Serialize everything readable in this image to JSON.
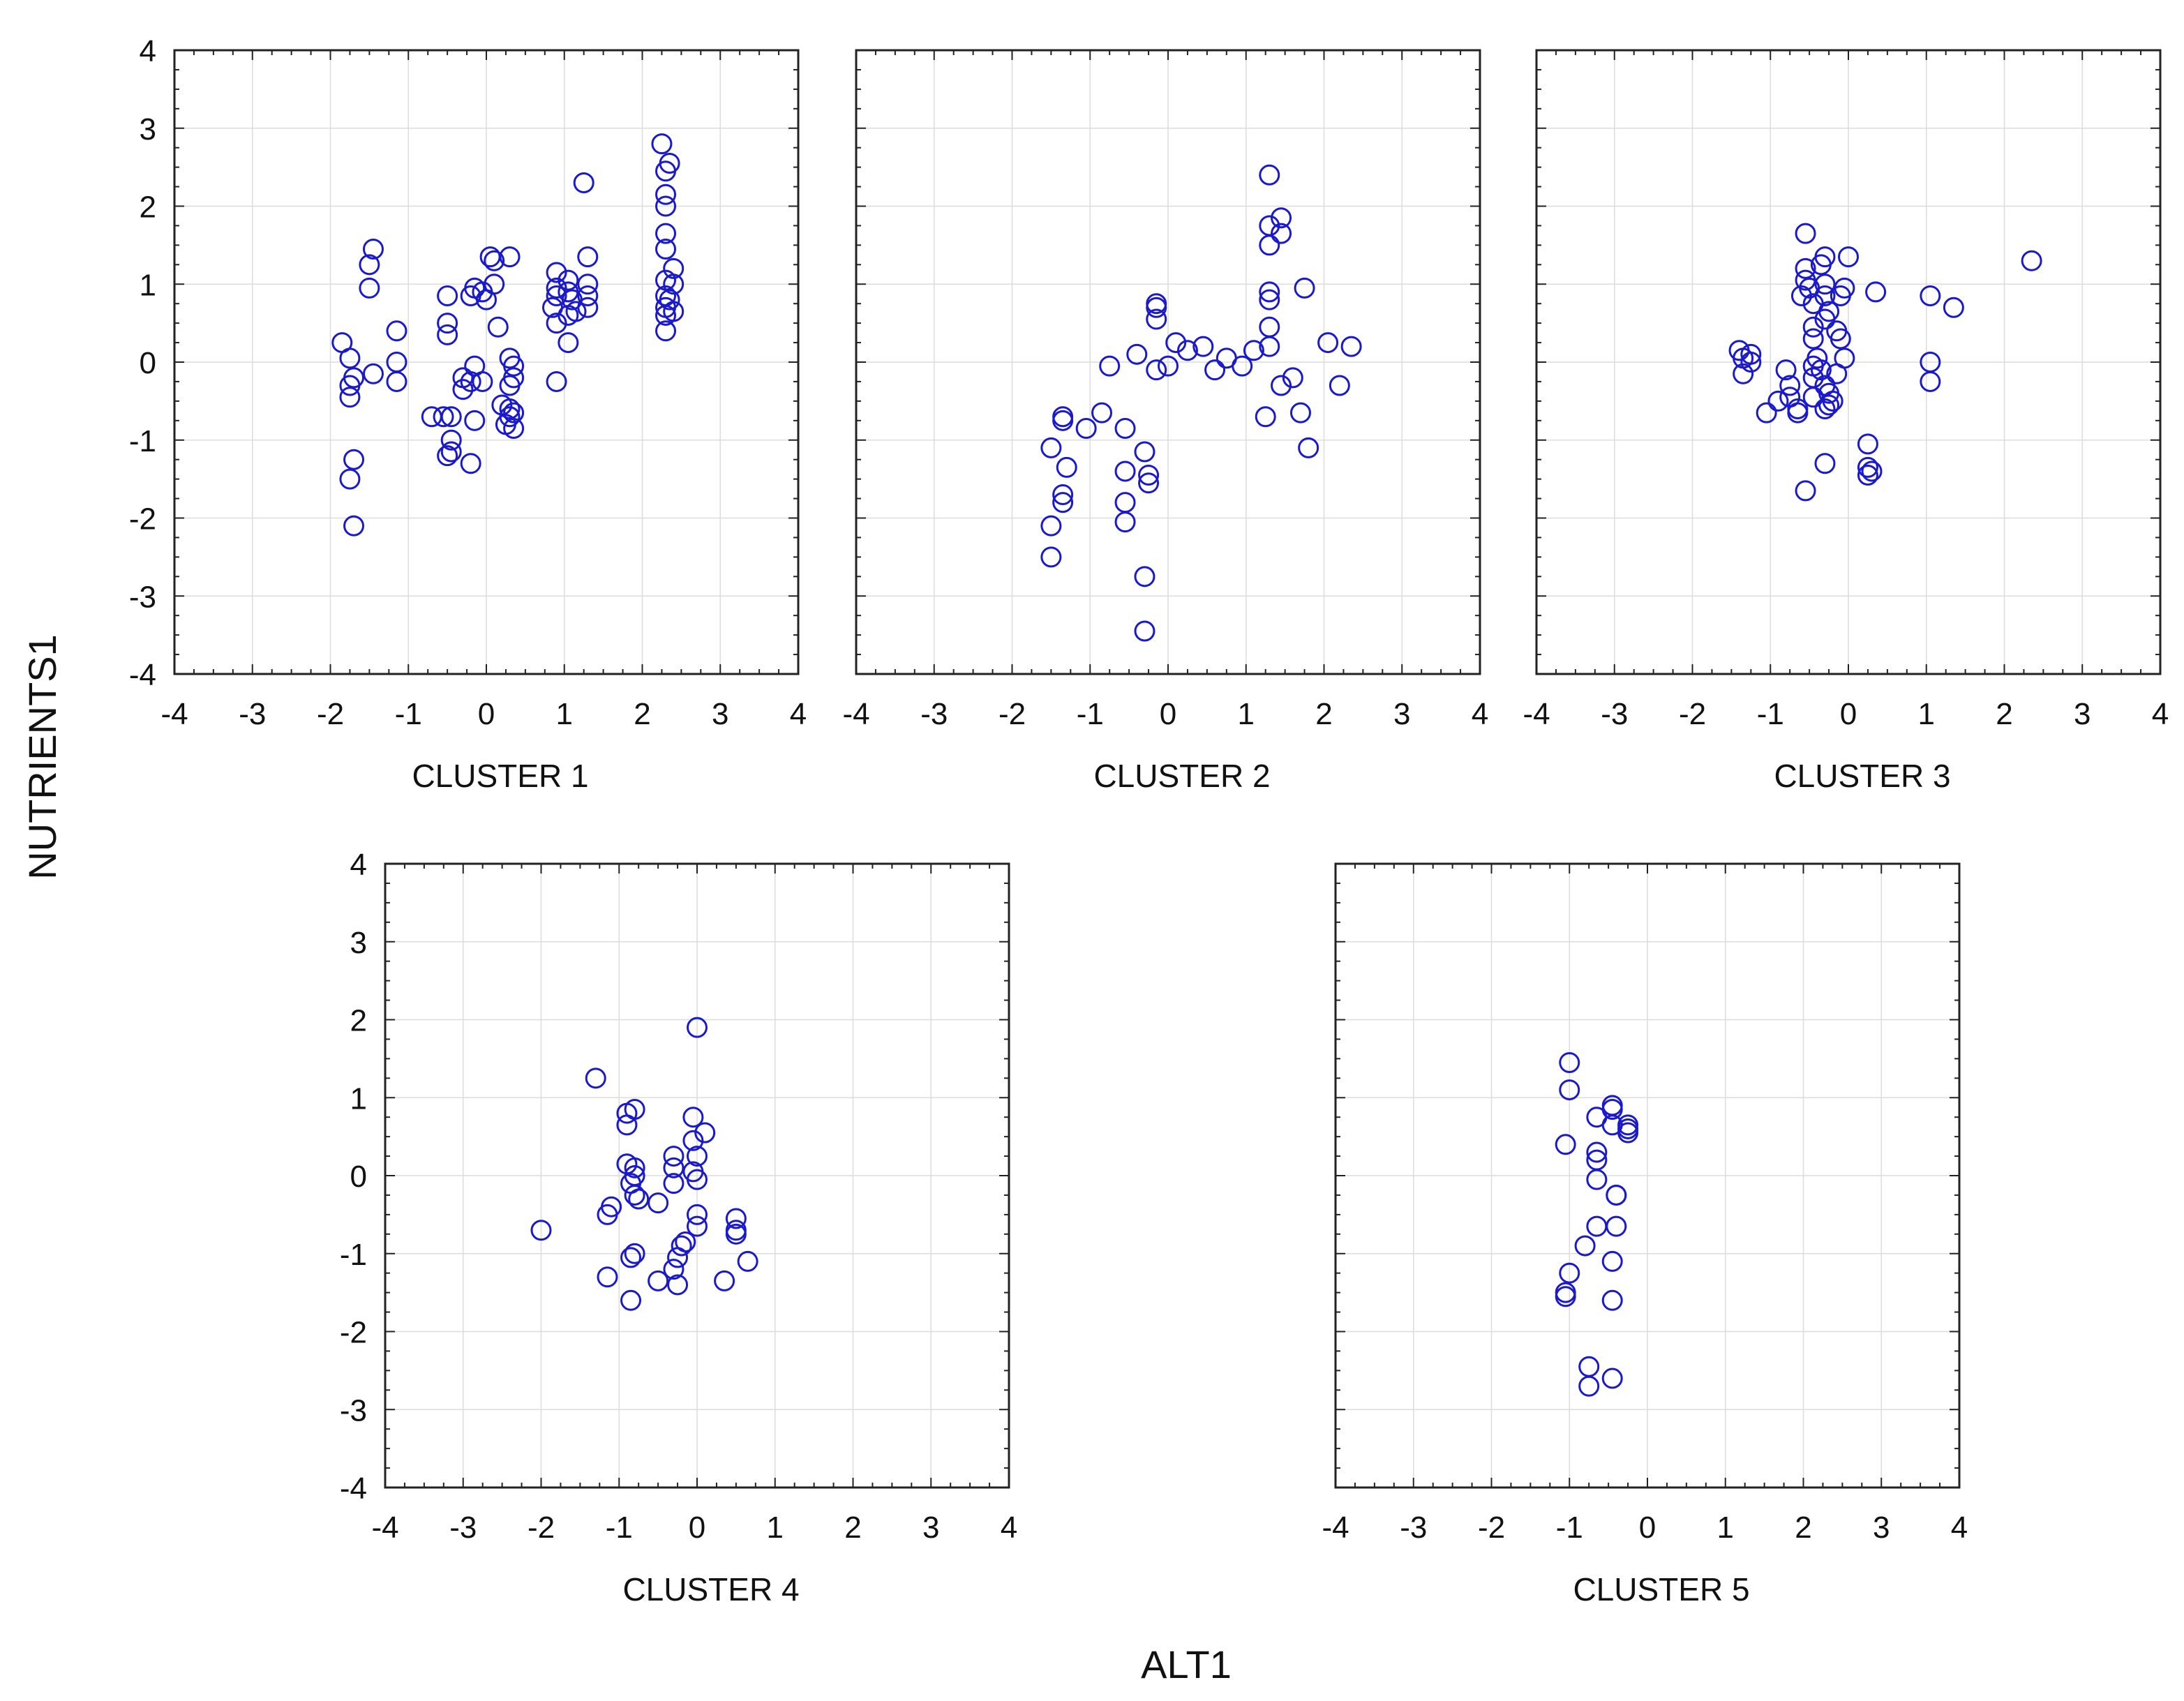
{
  "figure": {
    "ylabel": "NUTRIENTS1",
    "xlabel": "ALT1",
    "marker_color": "#1a1acc"
  },
  "chart_data": [
    {
      "type": "scatter",
      "title": "CLUSTER 1",
      "xlim": [
        -4,
        4
      ],
      "ylim": [
        -4,
        4
      ],
      "xticks": [
        "-4",
        "-3",
        "-2",
        "-1",
        "0",
        "1",
        "2",
        "3",
        "4"
      ],
      "yticks": [
        "4",
        "3",
        "2",
        "1",
        "0",
        "-1",
        "-2",
        "-3",
        "-4"
      ],
      "show_y_ticks": true,
      "grid": true,
      "points": [
        [
          -1.45,
          1.45
        ],
        [
          -1.5,
          1.25
        ],
        [
          -1.5,
          0.95
        ],
        [
          -1.85,
          0.25
        ],
        [
          -1.75,
          0.05
        ],
        [
          -1.7,
          -0.2
        ],
        [
          -1.75,
          -0.3
        ],
        [
          -1.75,
          -0.45
        ],
        [
          -1.45,
          -0.15
        ],
        [
          -1.15,
          0.4
        ],
        [
          -1.15,
          0.0
        ],
        [
          -1.15,
          -0.25
        ],
        [
          -1.7,
          -1.25
        ],
        [
          -1.75,
          -1.5
        ],
        [
          -1.7,
          -2.1
        ],
        [
          -0.5,
          0.85
        ],
        [
          -0.5,
          0.5
        ],
        [
          -0.5,
          0.35
        ],
        [
          -0.2,
          0.85
        ],
        [
          -0.15,
          0.95
        ],
        [
          0.0,
          0.8
        ],
        [
          -0.05,
          0.9
        ],
        [
          0.1,
          1.0
        ],
        [
          0.05,
          1.35
        ],
        [
          0.1,
          1.3
        ],
        [
          0.3,
          1.35
        ],
        [
          0.15,
          0.45
        ],
        [
          -0.15,
          -0.05
        ],
        [
          -0.3,
          -0.2
        ],
        [
          -0.3,
          -0.35
        ],
        [
          -0.2,
          -0.25
        ],
        [
          -0.05,
          -0.25
        ],
        [
          -0.15,
          -0.75
        ],
        [
          -0.55,
          -0.7
        ],
        [
          -0.45,
          -0.7
        ],
        [
          -0.7,
          -0.7
        ],
        [
          -0.45,
          -1.0
        ],
        [
          -0.45,
          -1.15
        ],
        [
          -0.5,
          -1.2
        ],
        [
          -0.2,
          -1.3
        ],
        [
          0.3,
          0.05
        ],
        [
          0.35,
          -0.05
        ],
        [
          0.35,
          -0.2
        ],
        [
          0.3,
          -0.3
        ],
        [
          0.2,
          -0.55
        ],
        [
          0.3,
          -0.6
        ],
        [
          0.35,
          -0.65
        ],
        [
          0.3,
          -0.7
        ],
        [
          0.25,
          -0.8
        ],
        [
          0.35,
          -0.85
        ],
        [
          0.9,
          1.15
        ],
        [
          0.9,
          0.95
        ],
        [
          0.9,
          0.85
        ],
        [
          0.85,
          0.7
        ],
        [
          0.9,
          0.5
        ],
        [
          1.05,
          1.05
        ],
        [
          1.05,
          0.9
        ],
        [
          1.1,
          0.8
        ],
        [
          1.15,
          0.65
        ],
        [
          1.05,
          0.6
        ],
        [
          1.3,
          1.35
        ],
        [
          1.3,
          1.0
        ],
        [
          1.3,
          0.85
        ],
        [
          1.3,
          0.7
        ],
        [
          1.25,
          2.3
        ],
        [
          1.05,
          0.25
        ],
        [
          0.9,
          -0.25
        ],
        [
          2.25,
          2.8
        ],
        [
          2.35,
          2.55
        ],
        [
          2.3,
          2.45
        ],
        [
          2.3,
          2.15
        ],
        [
          2.3,
          2.0
        ],
        [
          2.3,
          1.65
        ],
        [
          2.3,
          1.45
        ],
        [
          2.4,
          1.2
        ],
        [
          2.3,
          1.05
        ],
        [
          2.4,
          1.0
        ],
        [
          2.3,
          0.85
        ],
        [
          2.35,
          0.8
        ],
        [
          2.3,
          0.7
        ],
        [
          2.4,
          0.65
        ],
        [
          2.3,
          0.6
        ],
        [
          2.3,
          0.4
        ]
      ]
    },
    {
      "type": "scatter",
      "title": "CLUSTER 2",
      "xlim": [
        -4,
        4
      ],
      "ylim": [
        -4,
        4
      ],
      "xticks": [
        "-4",
        "-3",
        "-2",
        "-1",
        "0",
        "1",
        "2",
        "3",
        "4"
      ],
      "yticks": [],
      "show_y_ticks": false,
      "grid": true,
      "points": [
        [
          -1.5,
          -1.1
        ],
        [
          -1.35,
          -0.7
        ],
        [
          -1.35,
          -0.75
        ],
        [
          -1.3,
          -1.35
        ],
        [
          -1.35,
          -1.7
        ],
        [
          -1.35,
          -1.8
        ],
        [
          -1.5,
          -2.1
        ],
        [
          -1.5,
          -2.5
        ],
        [
          -1.05,
          -0.85
        ],
        [
          -0.85,
          -0.65
        ],
        [
          -0.75,
          -0.05
        ],
        [
          -0.55,
          -0.85
        ],
        [
          -0.55,
          -1.4
        ],
        [
          -0.55,
          -1.8
        ],
        [
          -0.55,
          -2.05
        ],
        [
          -0.3,
          -1.15
        ],
        [
          -0.25,
          -1.45
        ],
        [
          -0.25,
          -1.55
        ],
        [
          -0.3,
          -2.75
        ],
        [
          -0.3,
          -3.45
        ],
        [
          -0.15,
          0.75
        ],
        [
          -0.15,
          0.7
        ],
        [
          -0.15,
          0.55
        ],
        [
          -0.15,
          -0.1
        ],
        [
          -0.4,
          0.1
        ],
        [
          0.0,
          -0.05
        ],
        [
          0.1,
          0.25
        ],
        [
          0.25,
          0.15
        ],
        [
          0.45,
          0.2
        ],
        [
          0.6,
          -0.1
        ],
        [
          0.75,
          0.05
        ],
        [
          0.95,
          -0.05
        ],
        [
          1.1,
          0.15
        ],
        [
          1.25,
          -0.7
        ],
        [
          1.3,
          2.4
        ],
        [
          1.3,
          1.75
        ],
        [
          1.3,
          1.5
        ],
        [
          1.45,
          1.85
        ],
        [
          1.45,
          1.65
        ],
        [
          1.3,
          0.9
        ],
        [
          1.3,
          0.8
        ],
        [
          1.3,
          0.45
        ],
        [
          1.3,
          0.2
        ],
        [
          1.45,
          -0.3
        ],
        [
          1.6,
          -0.2
        ],
        [
          1.7,
          -0.65
        ],
        [
          1.75,
          0.95
        ],
        [
          1.8,
          -1.1
        ],
        [
          2.05,
          0.25
        ],
        [
          2.2,
          -0.3
        ],
        [
          2.35,
          0.2
        ]
      ]
    },
    {
      "type": "scatter",
      "title": "CLUSTER 3",
      "xlim": [
        -4,
        4
      ],
      "ylim": [
        -4,
        4
      ],
      "xticks": [
        "-4",
        "-3",
        "-2",
        "-1",
        "0",
        "1",
        "2",
        "3",
        "4"
      ],
      "yticks": [],
      "show_y_ticks": false,
      "grid": true,
      "points": [
        [
          -1.4,
          0.15
        ],
        [
          -1.35,
          0.05
        ],
        [
          -1.35,
          -0.15
        ],
        [
          -1.25,
          0.1
        ],
        [
          -1.25,
          0.0
        ],
        [
          -1.05,
          -0.65
        ],
        [
          -0.9,
          -0.5
        ],
        [
          -0.8,
          -0.1
        ],
        [
          -0.75,
          -0.3
        ],
        [
          -0.75,
          -0.45
        ],
        [
          -0.65,
          -0.6
        ],
        [
          -0.65,
          -0.65
        ],
        [
          -0.55,
          1.65
        ],
        [
          -0.55,
          1.2
        ],
        [
          -0.55,
          1.05
        ],
        [
          -0.6,
          0.85
        ],
        [
          -0.5,
          0.95
        ],
        [
          -0.45,
          0.75
        ],
        [
          -0.45,
          0.45
        ],
        [
          -0.45,
          0.3
        ],
        [
          -0.4,
          0.05
        ],
        [
          -0.45,
          -0.05
        ],
        [
          -0.45,
          -0.2
        ],
        [
          -0.45,
          -0.45
        ],
        [
          -0.35,
          1.25
        ],
        [
          -0.3,
          1.35
        ],
        [
          -0.3,
          1.0
        ],
        [
          -0.3,
          0.85
        ],
        [
          -0.25,
          0.65
        ],
        [
          -0.3,
          0.55
        ],
        [
          -0.35,
          -0.1
        ],
        [
          -0.3,
          -0.3
        ],
        [
          -0.25,
          -0.4
        ],
        [
          -0.2,
          -0.5
        ],
        [
          -0.25,
          -0.55
        ],
        [
          -0.3,
          -0.6
        ],
        [
          -0.15,
          0.4
        ],
        [
          -0.1,
          0.3
        ],
        [
          -0.05,
          0.05
        ],
        [
          -0.15,
          -0.15
        ],
        [
          -0.05,
          0.95
        ],
        [
          -0.1,
          0.85
        ],
        [
          0.0,
          1.35
        ],
        [
          -0.55,
          -1.65
        ],
        [
          -0.3,
          -1.3
        ],
        [
          0.25,
          -1.05
        ],
        [
          0.25,
          -1.35
        ],
        [
          0.25,
          -1.45
        ],
        [
          0.3,
          -1.4
        ],
        [
          0.35,
          0.9
        ],
        [
          1.05,
          0.85
        ],
        [
          1.05,
          0.0
        ],
        [
          1.05,
          -0.25
        ],
        [
          1.35,
          0.7
        ],
        [
          2.35,
          1.3
        ]
      ]
    },
    {
      "type": "scatter",
      "title": "CLUSTER 4",
      "xlim": [
        -4,
        4
      ],
      "ylim": [
        -4,
        4
      ],
      "xticks": [
        "-4",
        "-3",
        "-2",
        "-1",
        "0",
        "1",
        "2",
        "3",
        "4"
      ],
      "yticks": [
        "4",
        "3",
        "2",
        "1",
        "0",
        "-1",
        "-2",
        "-3",
        "-4"
      ],
      "show_y_ticks": true,
      "grid": true,
      "points": [
        [
          -2.0,
          -0.7
        ],
        [
          -1.3,
          1.25
        ],
        [
          -1.15,
          -0.5
        ],
        [
          -1.1,
          -0.4
        ],
        [
          -1.15,
          -1.3
        ],
        [
          -0.9,
          0.8
        ],
        [
          -0.9,
          0.65
        ],
        [
          -0.8,
          0.85
        ],
        [
          -0.9,
          0.15
        ],
        [
          -0.8,
          0.1
        ],
        [
          -0.8,
          0.0
        ],
        [
          -0.85,
          -0.1
        ],
        [
          -0.8,
          -0.25
        ],
        [
          -0.75,
          -0.3
        ],
        [
          -0.8,
          -1.0
        ],
        [
          -0.85,
          -1.05
        ],
        [
          -0.85,
          -1.6
        ],
        [
          -0.5,
          -0.35
        ],
        [
          -0.5,
          -1.35
        ],
        [
          -0.3,
          0.25
        ],
        [
          -0.3,
          0.1
        ],
        [
          -0.3,
          -0.1
        ],
        [
          -0.3,
          -1.2
        ],
        [
          -0.25,
          -1.05
        ],
        [
          -0.25,
          -1.4
        ],
        [
          -0.15,
          -0.85
        ],
        [
          -0.2,
          -0.9
        ],
        [
          -0.05,
          0.75
        ],
        [
          -0.05,
          0.45
        ],
        [
          -0.05,
          0.05
        ],
        [
          0.0,
          0.25
        ],
        [
          0.0,
          -0.05
        ],
        [
          0.0,
          -0.5
        ],
        [
          0.0,
          -0.65
        ],
        [
          0.0,
          1.9
        ],
        [
          0.1,
          0.55
        ],
        [
          0.35,
          -1.35
        ],
        [
          0.5,
          -0.55
        ],
        [
          0.5,
          -0.7
        ],
        [
          0.5,
          -0.75
        ],
        [
          0.65,
          -1.1
        ]
      ]
    },
    {
      "type": "scatter",
      "title": "CLUSTER 5",
      "xlim": [
        -4,
        4
      ],
      "ylim": [
        -4,
        4
      ],
      "xticks": [
        "-4",
        "-3",
        "-2",
        "-1",
        "0",
        "1",
        "2",
        "3",
        "4"
      ],
      "yticks": [],
      "show_y_ticks": false,
      "grid": true,
      "points": [
        [
          -1.0,
          1.45
        ],
        [
          -1.0,
          1.1
        ],
        [
          -1.05,
          0.4
        ],
        [
          -1.0,
          -1.25
        ],
        [
          -1.05,
          -1.5
        ],
        [
          -1.05,
          -1.55
        ],
        [
          -0.8,
          -0.9
        ],
        [
          -0.75,
          -2.45
        ],
        [
          -0.75,
          -2.7
        ],
        [
          -0.65,
          0.75
        ],
        [
          -0.65,
          0.3
        ],
        [
          -0.65,
          0.2
        ],
        [
          -0.65,
          -0.05
        ],
        [
          -0.65,
          -0.65
        ],
        [
          -0.45,
          0.9
        ],
        [
          -0.45,
          0.85
        ],
        [
          -0.45,
          0.65
        ],
        [
          -0.4,
          -0.25
        ],
        [
          -0.4,
          -0.25
        ],
        [
          -0.4,
          -0.65
        ],
        [
          -0.45,
          -1.1
        ],
        [
          -0.45,
          -1.6
        ],
        [
          -0.45,
          -2.6
        ],
        [
          -0.25,
          0.65
        ],
        [
          -0.25,
          0.6
        ],
        [
          -0.25,
          0.55
        ]
      ]
    }
  ]
}
